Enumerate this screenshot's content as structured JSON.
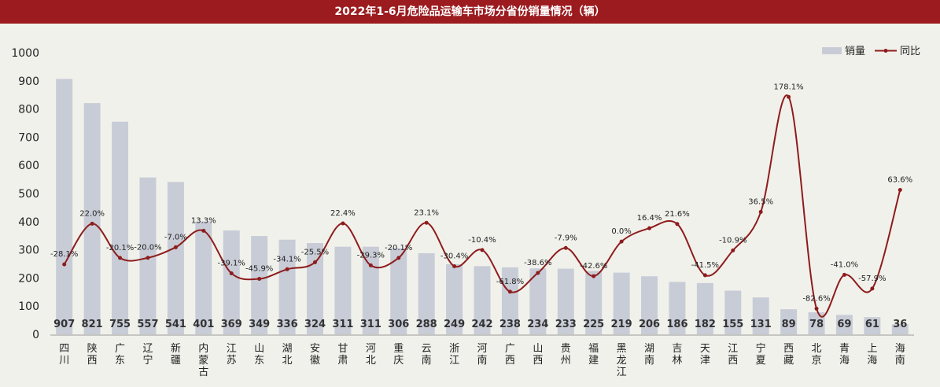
{
  "chart_data": {
    "type": "bar",
    "title": "2022年1-6月危险品运输车市场分省份销量情况（辆）",
    "categories": [
      "四川",
      "陕西",
      "广东",
      "辽宁",
      "新疆",
      "内蒙古",
      "江苏",
      "山东",
      "湖北",
      "安徽",
      "甘肃",
      "河北",
      "重庆",
      "云南",
      "浙江",
      "河南",
      "广西",
      "山西",
      "贵州",
      "福建",
      "黑龙江",
      "湖南",
      "吉林",
      "天津",
      "江西",
      "宁夏",
      "西藏",
      "北京",
      "青海",
      "上海",
      "海南"
    ],
    "series": [
      {
        "name": "销量",
        "type": "bar",
        "values": [
          907,
          821,
          755,
          557,
          541,
          401,
          369,
          349,
          336,
          324,
          311,
          311,
          306,
          288,
          249,
          242,
          238,
          234,
          233,
          225,
          219,
          206,
          186,
          182,
          155,
          131,
          89,
          78,
          69,
          61,
          36
        ]
      },
      {
        "name": "同比",
        "type": "line",
        "values": [
          -28.1,
          22.0,
          -20.1,
          -20.0,
          -7.0,
          13.3,
          -39.1,
          -45.9,
          -34.1,
          -25.5,
          22.4,
          -29.3,
          -20.1,
          23.1,
          -30.4,
          -10.4,
          -61.8,
          -38.6,
          -7.9,
          -42.6,
          0.0,
          16.4,
          21.6,
          -41.5,
          -10.9,
          36.5,
          178.1,
          -82.6,
          -41.0,
          -57.9,
          63.6
        ],
        "labels": [
          "-28.1%",
          "22.0%",
          "-20.1%",
          "-20.0%",
          "-7.0%",
          "13.3%",
          "-39.1%",
          "-45.9%",
          "-34.1%",
          "-25.5%",
          "22.4%",
          "-29.3%",
          "-20.1%",
          "23.1%",
          "-30.4%",
          "-10.4%",
          "-61.8%",
          "-38.6%",
          "-7.9%",
          "-42.6%",
          "0.0%",
          "16.4%",
          "21.6%",
          "-41.5%",
          "-10.9%",
          "36.5%",
          "178.1%",
          "-82.6%",
          "-41.0%",
          "-57.9%",
          "63.6%"
        ]
      }
    ],
    "ylim": [
      0,
      1000
    ],
    "yticks": [
      0,
      100,
      200,
      300,
      400,
      500,
      600,
      700,
      800,
      900,
      1000
    ],
    "legend_position": "top-right",
    "bar_color": "#c8ccd6",
    "line_color": "#8e1c1c"
  }
}
